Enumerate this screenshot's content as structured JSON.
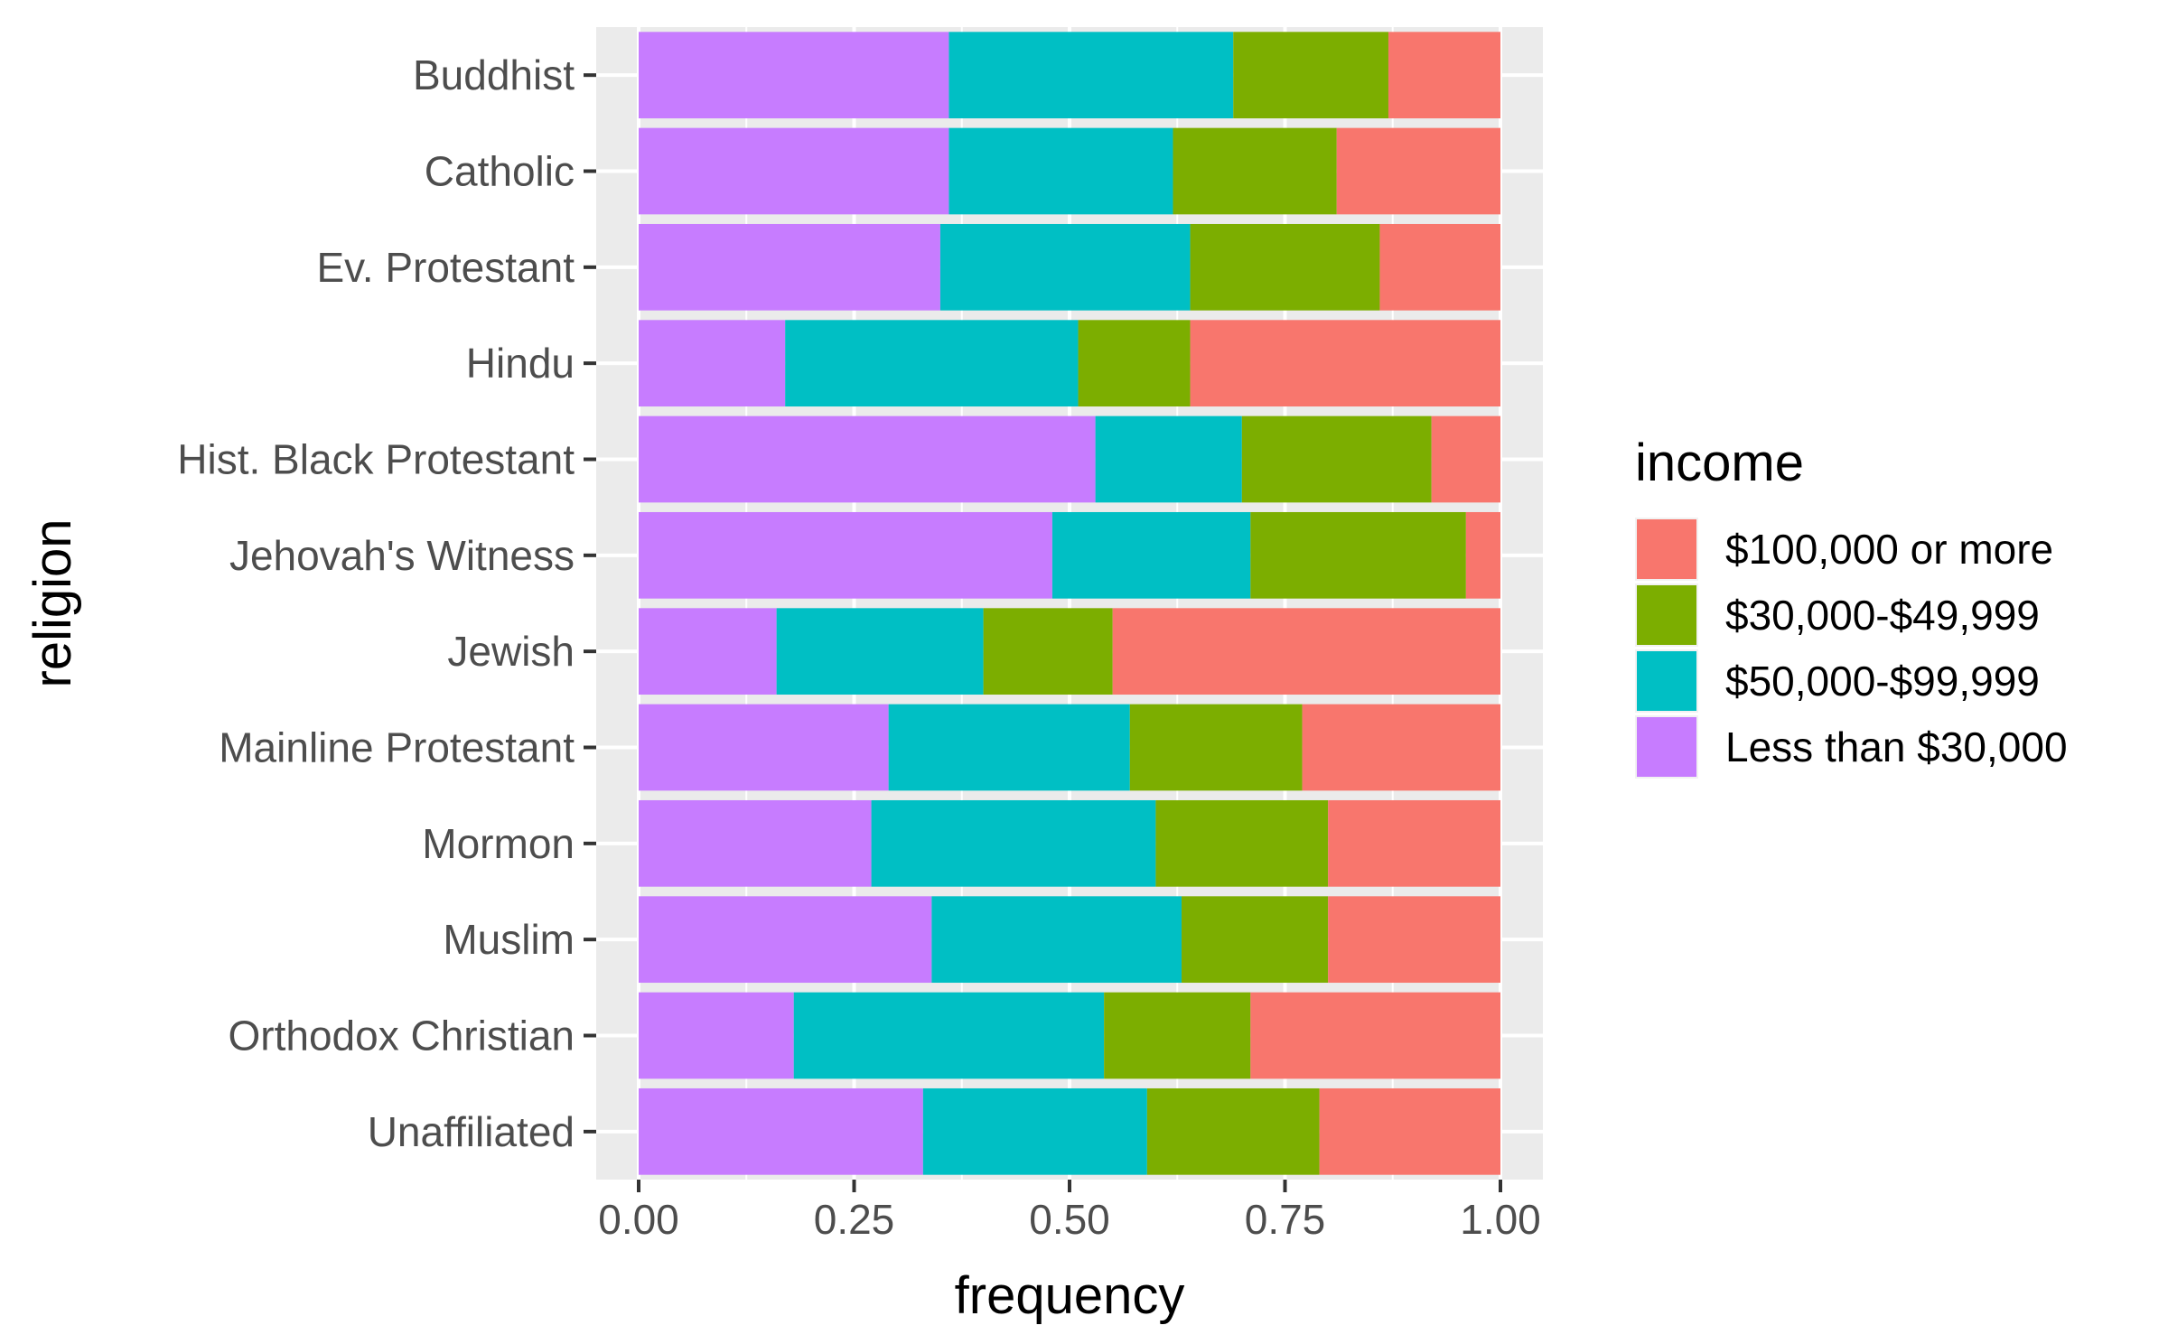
{
  "chart_data": {
    "type": "bar",
    "orientation": "horizontal",
    "stacked": "fill",
    "title": "",
    "xlabel": "frequency",
    "ylabel": "religion",
    "xlim": [
      0,
      1
    ],
    "x_ticks": [
      0.0,
      0.25,
      0.5,
      0.75,
      1.0
    ],
    "x_tick_labels": [
      "0.00",
      "0.25",
      "0.50",
      "0.75",
      "1.00"
    ],
    "grid": true,
    "legend": {
      "title": "income",
      "position": "right",
      "entries": [
        "$100,000 or more",
        "$30,000-$49,999",
        "$50,000-$99,999",
        "Less than $30,000"
      ]
    },
    "categories": [
      "Buddhist",
      "Catholic",
      "Ev. Protestant",
      "Hindu",
      "Hist. Black Protestant",
      "Jehovah's Witness",
      "Jewish",
      "Mainline Protestant",
      "Mormon",
      "Muslim",
      "Orthodox Christian",
      "Unaffiliated"
    ],
    "series": [
      {
        "name": "Less than $30,000",
        "color": "#C77CFF",
        "values": [
          0.36,
          0.36,
          0.35,
          0.17,
          0.53,
          0.48,
          0.16,
          0.29,
          0.27,
          0.34,
          0.18,
          0.33
        ]
      },
      {
        "name": "$50,000-$99,999",
        "color": "#00BFC4",
        "values": [
          0.33,
          0.26,
          0.29,
          0.34,
          0.17,
          0.23,
          0.24,
          0.28,
          0.33,
          0.29,
          0.36,
          0.26
        ]
      },
      {
        "name": "$30,000-$49,999",
        "color": "#7CAE00",
        "values": [
          0.18,
          0.19,
          0.22,
          0.13,
          0.22,
          0.25,
          0.15,
          0.2,
          0.2,
          0.17,
          0.17,
          0.2
        ]
      },
      {
        "name": "$100,000 or more",
        "color": "#F8766D",
        "values": [
          0.13,
          0.19,
          0.14,
          0.36,
          0.08,
          0.04,
          0.45,
          0.23,
          0.2,
          0.2,
          0.29,
          0.21
        ]
      }
    ],
    "colors": {
      "$100,000 or more": "#F8766D",
      "$30,000-$49,999": "#7CAE00",
      "$50,000-$99,999": "#00BFC4",
      "Less than $30,000": "#C77CFF",
      "panel_background": "#EBEBEB",
      "gridline": "#FFFFFF"
    }
  }
}
